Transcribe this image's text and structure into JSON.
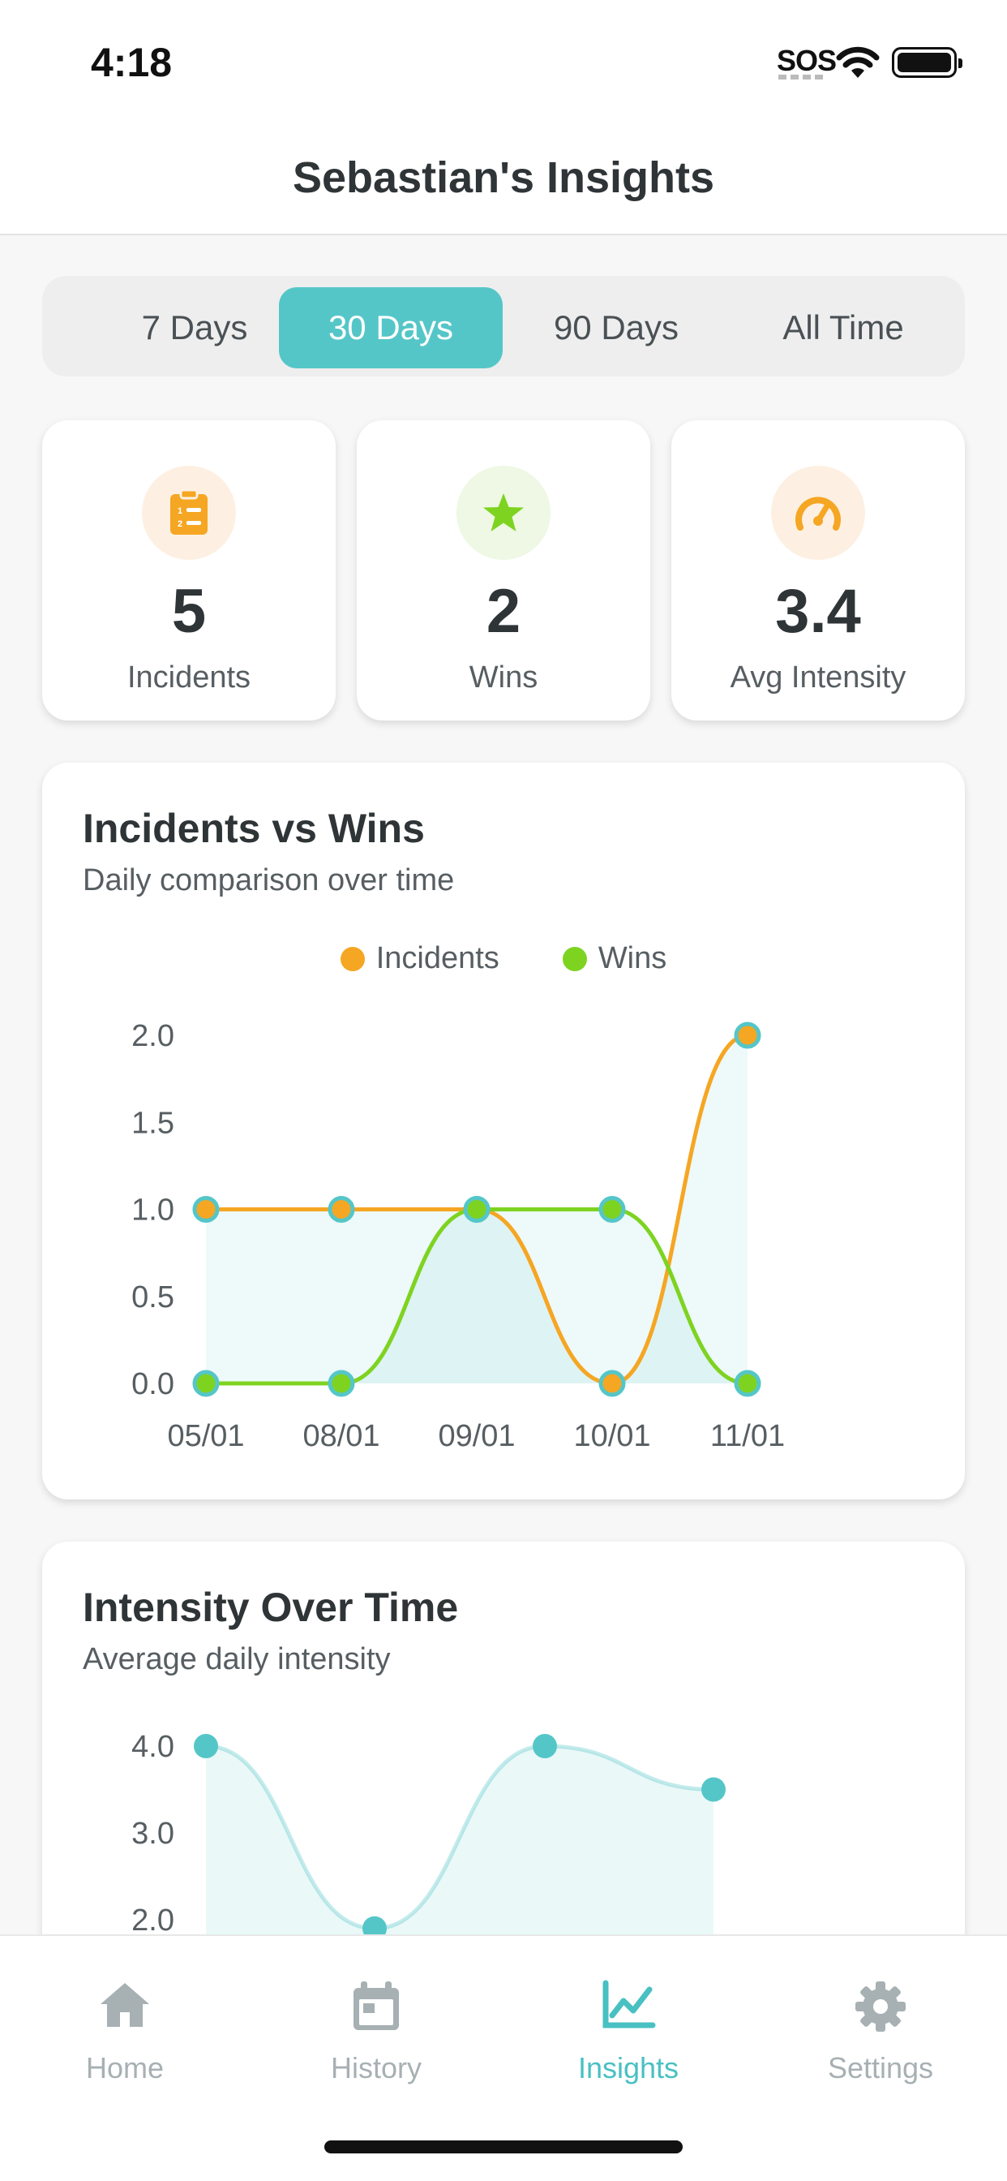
{
  "status_bar": {
    "time": "4:18",
    "carrier": "SOS"
  },
  "header": {
    "title": "Sebastian's Insights"
  },
  "range_tabs": [
    {
      "label": "7 Days",
      "active": false
    },
    {
      "label": "30 Days",
      "active": true
    },
    {
      "label": "90 Days",
      "active": false
    },
    {
      "label": "All Time",
      "active": false
    }
  ],
  "stats": [
    {
      "value": "5",
      "label": "Incidents",
      "icon": "clipboard-list-icon",
      "color": "#f5a623"
    },
    {
      "value": "2",
      "label": "Wins",
      "icon": "star-icon",
      "color": "#7ed321"
    },
    {
      "value": "3.4",
      "label": "Avg Intensity",
      "icon": "gauge-icon",
      "color": "#f5a623"
    }
  ],
  "incidents_chart": {
    "title": "Incidents vs Wins",
    "subtitle": "Daily comparison over time"
  },
  "intensity_chart": {
    "title": "Intensity Over Time",
    "subtitle": "Average daily intensity"
  },
  "chart_data": [
    {
      "type": "line",
      "title": "Incidents vs Wins",
      "subtitle": "Daily comparison over time",
      "x": [
        "05/01",
        "08/01",
        "09/01",
        "10/01",
        "11/01"
      ],
      "yticks": [
        "0.0",
        "0.5",
        "1.0",
        "1.5",
        "2.0"
      ],
      "ylim": [
        0,
        2
      ],
      "series": [
        {
          "name": "Incidents",
          "color": "#f5a623",
          "values": [
            1,
            1,
            1,
            0,
            2
          ]
        },
        {
          "name": "Wins",
          "color": "#7ed321",
          "values": [
            0,
            0,
            1,
            1,
            0
          ]
        }
      ],
      "legend": "top-center",
      "fill": true
    },
    {
      "type": "area",
      "title": "Intensity Over Time",
      "subtitle": "Average daily intensity",
      "yticks": [
        "2.0",
        "3.0",
        "4.0"
      ],
      "series": [
        {
          "color": "#55c6c8",
          "values": [
            4.0,
            1.9,
            4.0,
            3.5
          ]
        }
      ]
    }
  ],
  "tabbar": [
    {
      "label": "Home",
      "icon": "home-icon",
      "active": false
    },
    {
      "label": "History",
      "icon": "calendar-icon",
      "active": false
    },
    {
      "label": "Insights",
      "icon": "chart-line-icon",
      "active": true
    },
    {
      "label": "Settings",
      "icon": "gear-icon",
      "active": false
    }
  ]
}
